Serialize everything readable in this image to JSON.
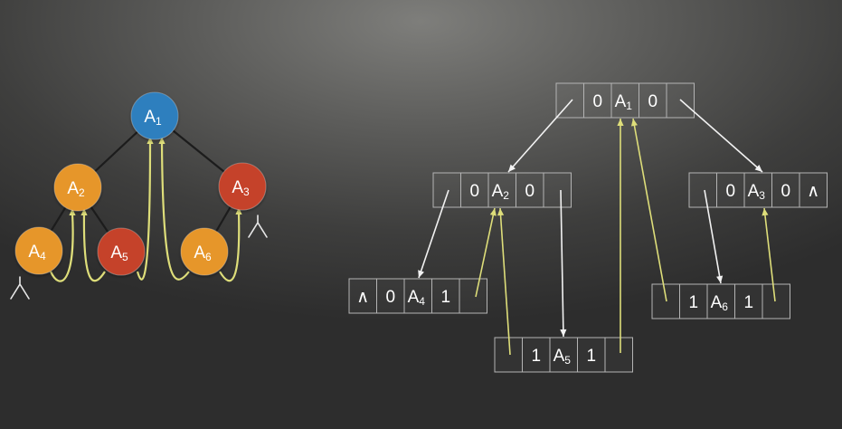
{
  "colors": {
    "blue": "#2f7fbe",
    "orange": "#e6962a",
    "red": "#c5432a",
    "thread": "#dede7a",
    "pointer": "#f2f2f2",
    "edge": "#1c1c1c",
    "cell_border": "#b4b4b4"
  },
  "tree": {
    "nodes": [
      {
        "id": "A1",
        "base": "A",
        "sub": "1",
        "color": "blue"
      },
      {
        "id": "A2",
        "base": "A",
        "sub": "2",
        "color": "orange"
      },
      {
        "id": "A3",
        "base": "A",
        "sub": "3",
        "color": "red"
      },
      {
        "id": "A4",
        "base": "A",
        "sub": "4",
        "color": "orange"
      },
      {
        "id": "A5",
        "base": "A",
        "sub": "5",
        "color": "red"
      },
      {
        "id": "A6",
        "base": "A",
        "sub": "6",
        "color": "orange"
      }
    ],
    "edges": [
      [
        "A1",
        "A2"
      ],
      [
        "A1",
        "A3"
      ],
      [
        "A2",
        "A4"
      ],
      [
        "A2",
        "A5"
      ],
      [
        "A3",
        "A6"
      ]
    ],
    "threads": [
      [
        "A4",
        "A2"
      ],
      [
        "A5",
        "A2"
      ],
      [
        "A5",
        "A1"
      ],
      [
        "A6",
        "A1"
      ],
      [
        "A6",
        "A3"
      ]
    ],
    "null_marks": [
      "A4",
      "A3"
    ]
  },
  "structure": {
    "nodes": [
      {
        "id": "N1",
        "cells": [
          "",
          "0",
          "A|1",
          "0",
          ""
        ]
      },
      {
        "id": "N2",
        "cells": [
          "",
          "0",
          "A|2",
          "0",
          ""
        ]
      },
      {
        "id": "N3",
        "cells": [
          "",
          "0",
          "A|3",
          "0",
          "∧"
        ]
      },
      {
        "id": "N4",
        "cells": [
          "∧",
          "0",
          "A|4",
          "1",
          ""
        ]
      },
      {
        "id": "N5",
        "cells": [
          "",
          "1",
          "A|5",
          "1",
          ""
        ]
      },
      {
        "id": "N6",
        "cells": [
          "",
          "1",
          "A|6",
          "1",
          ""
        ]
      }
    ],
    "pointers": [
      [
        "N1",
        "N2"
      ],
      [
        "N1",
        "N3"
      ],
      [
        "N2",
        "N4"
      ],
      [
        "N2",
        "N5"
      ],
      [
        "N3",
        "N6"
      ]
    ],
    "threads": [
      [
        "N4",
        "N2"
      ],
      [
        "N5",
        "N2"
      ],
      [
        "N5",
        "N1"
      ],
      [
        "N6",
        "N1"
      ],
      [
        "N6",
        "N3"
      ]
    ]
  }
}
